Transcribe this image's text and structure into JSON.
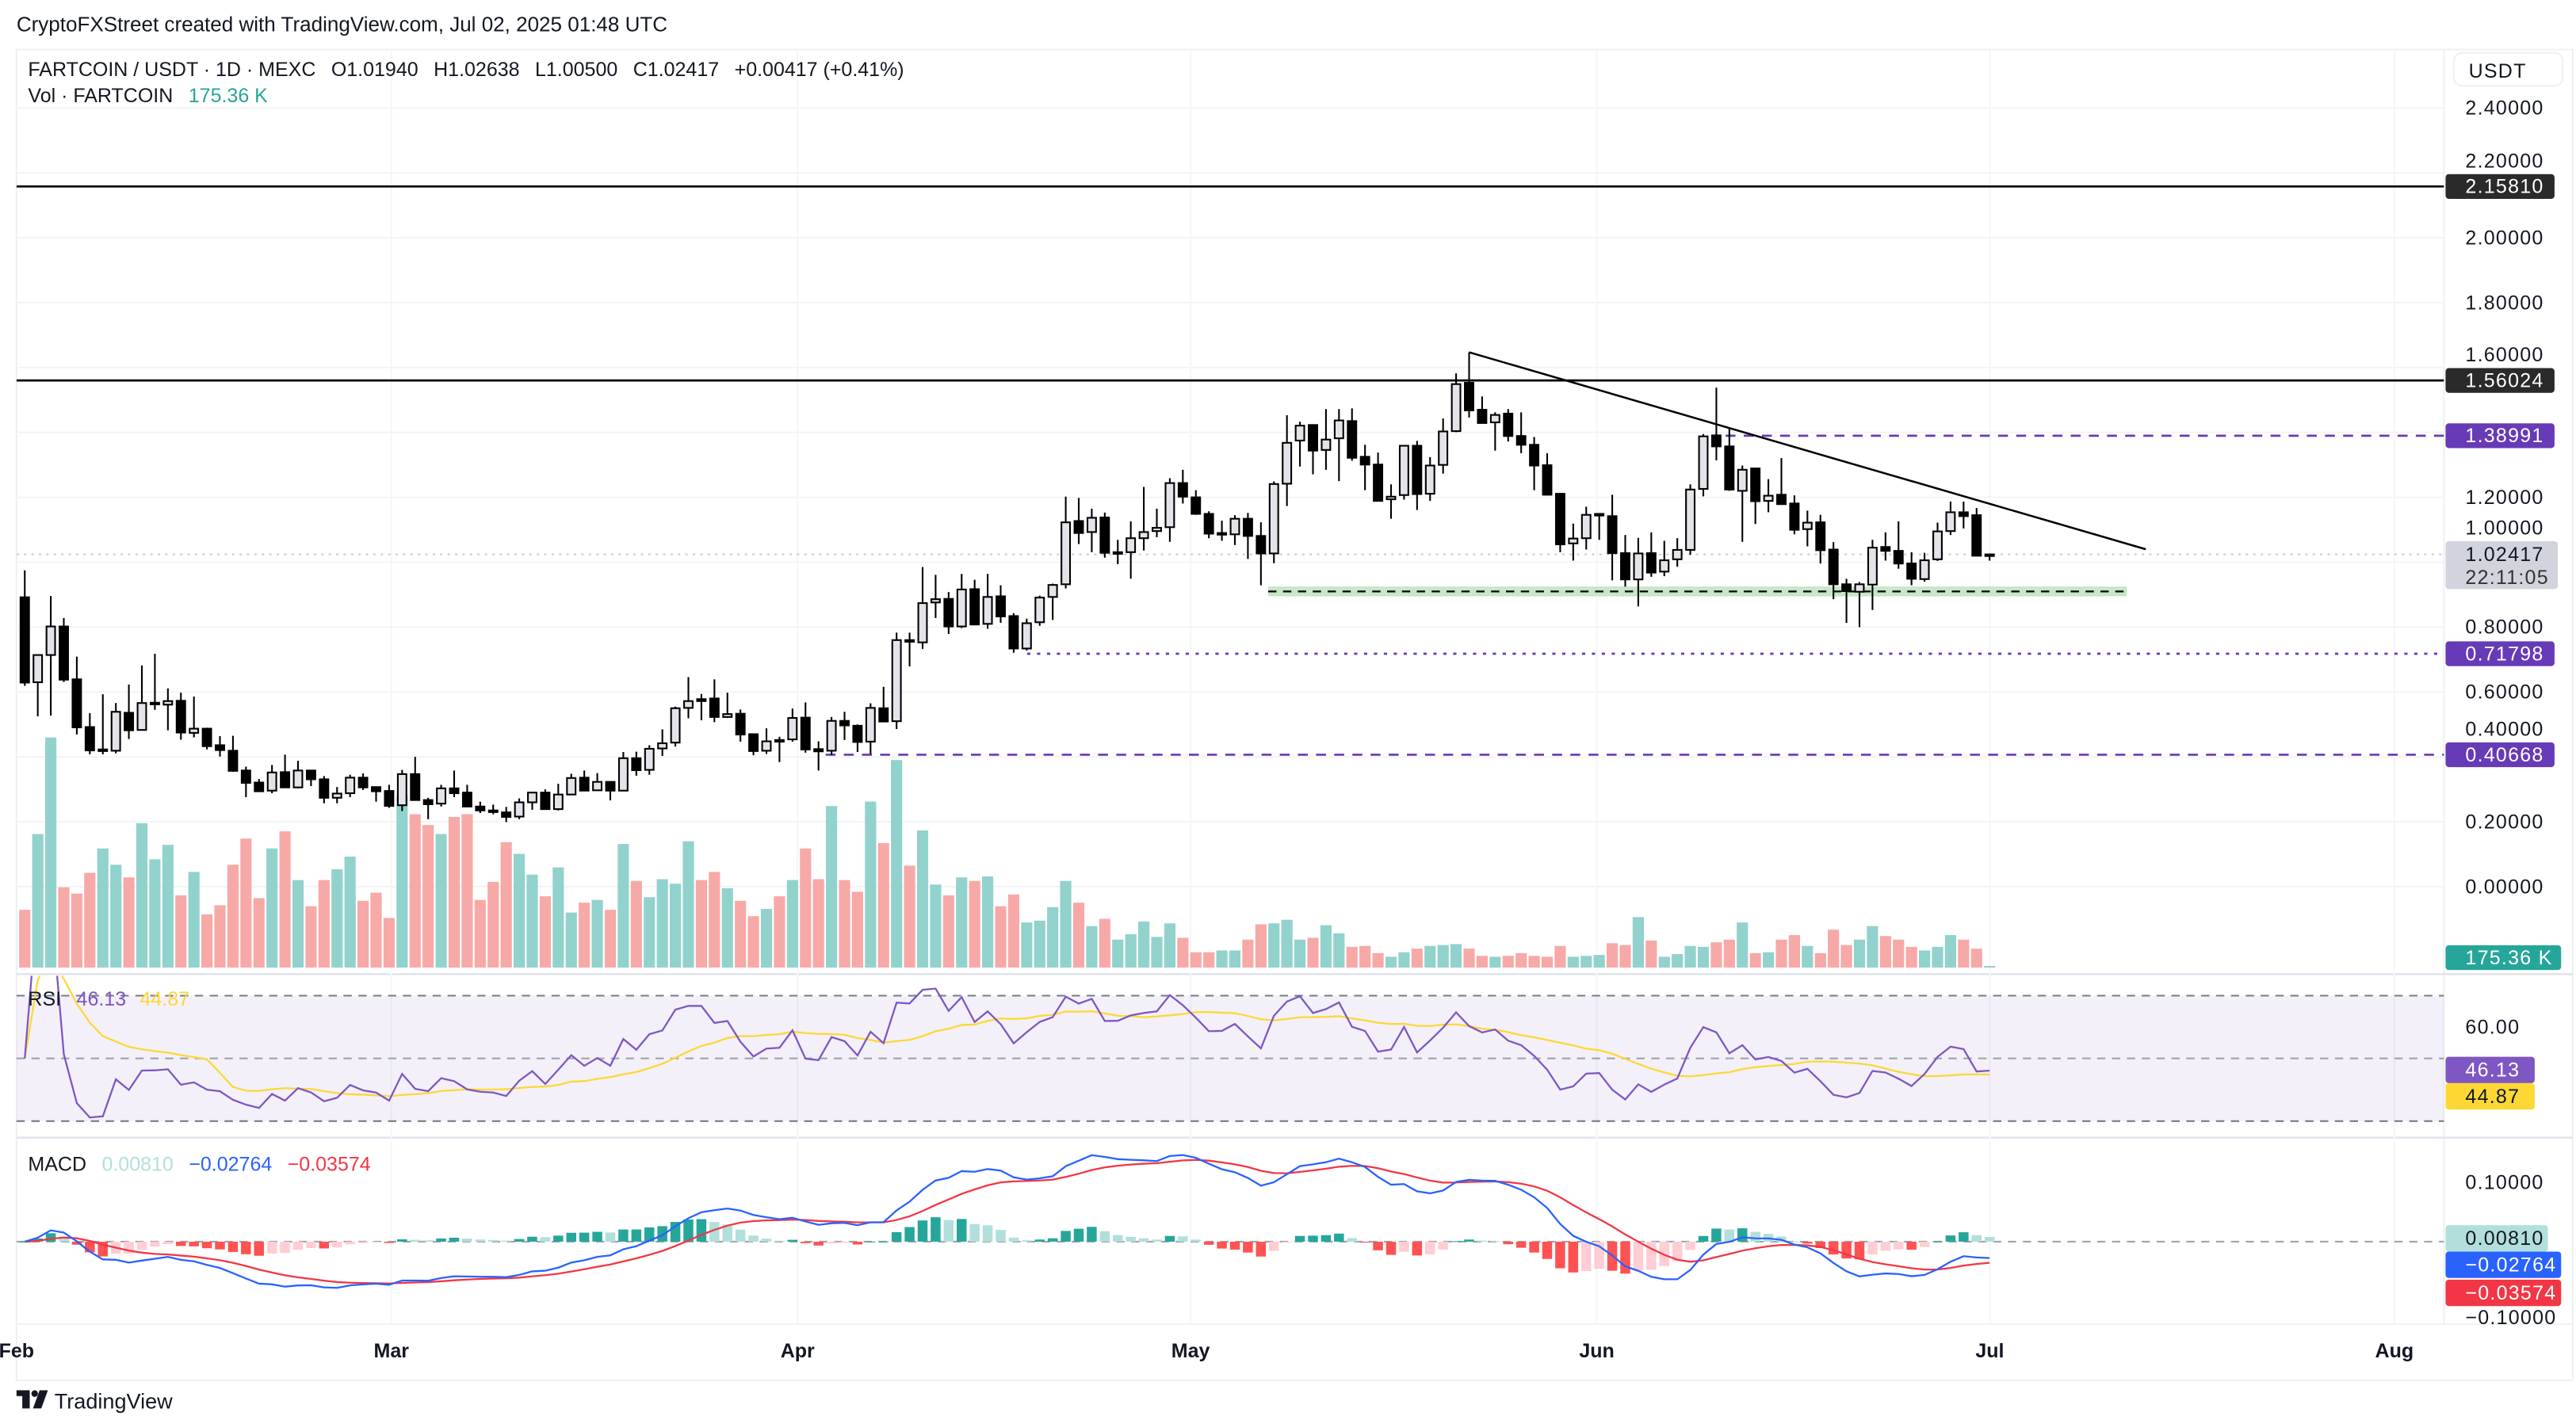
{
  "attribution": "CryptoFXStreet created with TradingView.com, Jul 02, 2025 01:48 UTC",
  "legend": {
    "symbol": "FARTCOIN / USDT · 1D · MEXC",
    "open": "O1.01940",
    "high": "H1.02638",
    "low": "L1.00500",
    "close": "C1.02417",
    "change": "+0.00417 (+0.41%)",
    "vol_label": "Vol · FARTCOIN",
    "vol_value": "175.36 K"
  },
  "currency_button": "USDT",
  "price_axis": [
    "2.40000",
    "2.20000",
    "2.00000",
    "1.80000",
    "1.60000",
    "1.20000",
    "1.00000",
    "0.80000",
    "0.60000",
    "0.40000",
    "0.20000",
    "0.00000"
  ],
  "price_badges": {
    "resistance_high": "2.15810",
    "resistance_mid": "1.56024",
    "level_upper": "1.38991",
    "last_price": "1.02417",
    "countdown": "22:11:05",
    "level_lower": "0.71798",
    "level_bottom": "0.40668",
    "volume": "175.36 K"
  },
  "rsi": {
    "label": "RSI",
    "value": "46.13",
    "ma_value": "44.87",
    "axis": [
      "60.00"
    ]
  },
  "macd": {
    "label": "MACD",
    "histogram": "0.00810",
    "macd": "−0.02764",
    "signal": "−0.03574",
    "axis": [
      "0.10000",
      "−0.10000"
    ]
  },
  "time_axis": [
    "Feb",
    "Mar",
    "Apr",
    "May",
    "Jun",
    "Jul",
    "Aug"
  ],
  "logo": "TradingView",
  "colors": {
    "bull_body": "#e3e4ea",
    "bear_body": "#000000",
    "vol_up": "#92d2cc",
    "vol_down": "#f7a9a7",
    "purple": "#673ab7",
    "rsi_line": "#7e57c2",
    "rsi_ma": "#fdd835",
    "macd_line": "#2962ff",
    "signal_line": "#f23645",
    "hist_up_strong": "#26a69a",
    "hist_up_weak": "#b2dfdb",
    "hist_down_strong": "#ff5252",
    "hist_down_weak": "#ffcdd2",
    "support_zone": "#c8e6c9"
  },
  "chart_data": {
    "type": "candlestick",
    "symbol": "FARTCOIN / USDT",
    "interval": "1D",
    "x_start": "2025-02-01",
    "x_end": "2025-07-02",
    "ylim": [
      0,
      2.4
    ],
    "ohlc": [
      [
        0.892,
        0.975,
        0.619,
        0.629
      ],
      [
        0.63,
        0.714,
        0.525,
        0.714
      ],
      [
        0.714,
        0.896,
        0.527,
        0.802
      ],
      [
        0.802,
        0.828,
        0.631,
        0.638
      ],
      [
        0.639,
        0.709,
        0.469,
        0.491
      ],
      [
        0.492,
        0.535,
        0.408,
        0.42
      ],
      [
        0.42,
        0.593,
        0.408,
        0.423
      ],
      [
        0.419,
        0.566,
        0.411,
        0.539
      ],
      [
        0.536,
        0.623,
        0.455,
        0.482
      ],
      [
        0.483,
        0.682,
        0.483,
        0.566
      ],
      [
        0.567,
        0.718,
        0.545,
        0.567
      ],
      [
        0.561,
        0.611,
        0.482,
        0.572
      ],
      [
        0.573,
        0.598,
        0.453,
        0.475
      ],
      [
        0.474,
        0.586,
        0.46,
        0.487
      ],
      [
        0.487,
        0.49,
        0.423,
        0.433
      ],
      [
        0.436,
        0.464,
        0.401,
        0.421
      ],
      [
        0.419,
        0.465,
        0.354,
        0.357
      ],
      [
        0.358,
        0.37,
        0.276,
        0.32
      ],
      [
        0.321,
        0.332,
        0.294,
        0.294
      ],
      [
        0.296,
        0.375,
        0.288,
        0.352
      ],
      [
        0.353,
        0.407,
        0.306,
        0.306
      ],
      [
        0.306,
        0.388,
        0.303,
        0.358
      ],
      [
        0.358,
        0.36,
        0.31,
        0.331
      ],
      [
        0.331,
        0.341,
        0.257,
        0.274
      ],
      [
        0.274,
        0.307,
        0.257,
        0.287
      ],
      [
        0.288,
        0.345,
        0.276,
        0.336
      ],
      [
        0.336,
        0.349,
        0.298,
        0.306
      ],
      [
        0.307,
        0.309,
        0.262,
        0.294
      ],
      [
        0.295,
        0.314,
        0.243,
        0.249
      ],
      [
        0.251,
        0.36,
        0.233,
        0.347
      ],
      [
        0.347,
        0.4,
        0.267,
        0.267
      ],
      [
        0.267,
        0.274,
        0.208,
        0.254
      ],
      [
        0.256,
        0.314,
        0.247,
        0.303
      ],
      [
        0.303,
        0.358,
        0.276,
        0.288
      ],
      [
        0.29,
        0.314,
        0.247,
        0.247
      ],
      [
        0.247,
        0.262,
        0.227,
        0.235
      ],
      [
        0.235,
        0.253,
        0.223,
        0.231
      ],
      [
        0.229,
        0.246,
        0.199,
        0.215
      ],
      [
        0.216,
        0.272,
        0.208,
        0.26
      ],
      [
        0.26,
        0.292,
        0.237,
        0.29
      ],
      [
        0.29,
        0.3,
        0.237,
        0.239
      ],
      [
        0.239,
        0.317,
        0.235,
        0.284
      ],
      [
        0.284,
        0.348,
        0.284,
        0.335
      ],
      [
        0.336,
        0.358,
        0.296,
        0.296
      ],
      [
        0.297,
        0.35,
        0.296,
        0.323
      ],
      [
        0.323,
        0.324,
        0.266,
        0.296
      ],
      [
        0.296,
        0.415,
        0.296,
        0.396
      ],
      [
        0.396,
        0.416,
        0.342,
        0.359
      ],
      [
        0.36,
        0.436,
        0.345,
        0.425
      ],
      [
        0.426,
        0.485,
        0.403,
        0.442
      ],
      [
        0.444,
        0.555,
        0.432,
        0.55
      ],
      [
        0.551,
        0.646,
        0.519,
        0.572
      ],
      [
        0.578,
        0.594,
        0.513,
        0.572
      ],
      [
        0.58,
        0.639,
        0.507,
        0.523
      ],
      [
        0.523,
        0.598,
        0.52,
        0.532
      ],
      [
        0.533,
        0.546,
        0.447,
        0.469
      ],
      [
        0.47,
        0.472,
        0.405,
        0.418
      ],
      [
        0.419,
        0.488,
        0.409,
        0.448
      ],
      [
        0.452,
        0.462,
        0.384,
        0.451
      ],
      [
        0.454,
        0.549,
        0.447,
        0.52
      ],
      [
        0.521,
        0.568,
        0.413,
        0.423
      ],
      [
        0.424,
        0.448,
        0.358,
        0.417
      ],
      [
        0.419,
        0.523,
        0.406,
        0.511
      ],
      [
        0.511,
        0.539,
        0.452,
        0.497
      ],
      [
        0.496,
        0.5,
        0.415,
        0.446
      ],
      [
        0.447,
        0.565,
        0.409,
        0.551
      ],
      [
        0.55,
        0.616,
        0.509,
        0.509
      ],
      [
        0.51,
        0.783,
        0.486,
        0.76
      ],
      [
        0.76,
        0.783,
        0.679,
        0.757
      ],
      [
        0.753,
        0.985,
        0.733,
        0.874
      ],
      [
        0.876,
        0.961,
        0.828,
        0.886
      ],
      [
        0.887,
        0.908,
        0.779,
        0.802
      ],
      [
        0.802,
        0.964,
        0.797,
        0.916
      ],
      [
        0.917,
        0.946,
        0.806,
        0.808
      ],
      [
        0.81,
        0.964,
        0.795,
        0.893
      ],
      [
        0.895,
        0.929,
        0.813,
        0.833
      ],
      [
        0.834,
        0.843,
        0.721,
        0.734
      ],
      [
        0.734,
        0.826,
        0.728,
        0.812
      ],
      [
        0.815,
        0.897,
        0.804,
        0.891
      ],
      [
        0.893,
        0.934,
        0.822,
        0.93
      ],
      [
        0.932,
        1.202,
        0.919,
        1.123
      ],
      [
        1.127,
        1.198,
        1.056,
        1.09
      ],
      [
        1.093,
        1.165,
        1.031,
        1.137
      ],
      [
        1.138,
        1.153,
        1.014,
        1.029
      ],
      [
        1.031,
        1.069,
        0.994,
        1.031
      ],
      [
        1.031,
        1.126,
        0.949,
        1.074
      ],
      [
        1.074,
        1.232,
        1.036,
        1.093
      ],
      [
        1.096,
        1.165,
        1.077,
        1.106
      ],
      [
        1.108,
        1.259,
        1.063,
        1.244
      ],
      [
        1.244,
        1.285,
        1.181,
        1.202
      ],
      [
        1.2,
        1.222,
        1.146,
        1.149
      ],
      [
        1.149,
        1.157,
        1.074,
        1.088
      ],
      [
        1.09,
        1.128,
        1.066,
        1.09
      ],
      [
        1.086,
        1.145,
        1.053,
        1.134
      ],
      [
        1.134,
        1.152,
        1.01,
        1.081
      ],
      [
        1.081,
        1.123,
        0.929,
        1.027
      ],
      [
        1.027,
        1.249,
        0.997,
        1.241
      ],
      [
        1.242,
        1.453,
        1.173,
        1.368
      ],
      [
        1.375,
        1.433,
        1.295,
        1.421
      ],
      [
        1.423,
        1.423,
        1.271,
        1.344
      ],
      [
        1.346,
        1.472,
        1.285,
        1.378
      ],
      [
        1.382,
        1.472,
        1.25,
        1.437
      ],
      [
        1.435,
        1.474,
        1.313,
        1.322
      ],
      [
        1.325,
        1.362,
        1.222,
        1.301
      ],
      [
        1.301,
        1.338,
        1.188,
        1.189
      ],
      [
        1.194,
        1.24,
        1.134,
        1.202
      ],
      [
        1.207,
        1.359,
        1.193,
        1.359
      ],
      [
        1.359,
        1.374,
        1.161,
        1.21
      ],
      [
        1.211,
        1.324,
        1.189,
        1.298
      ],
      [
        1.3,
        1.443,
        1.273,
        1.403
      ],
      [
        1.404,
        1.582,
        1.401,
        1.549
      ],
      [
        1.553,
        1.647,
        1.446,
        1.468
      ],
      [
        1.47,
        1.511,
        1.428,
        1.429
      ],
      [
        1.431,
        1.462,
        1.344,
        1.454
      ],
      [
        1.458,
        1.472,
        1.372,
        1.389
      ],
      [
        1.389,
        1.462,
        1.336,
        1.362
      ],
      [
        1.362,
        1.386,
        1.222,
        1.298
      ],
      [
        1.299,
        1.336,
        1.206,
        1.208
      ],
      [
        1.211,
        1.214,
        1.031,
        1.055
      ],
      [
        1.058,
        1.119,
        1.005,
        1.073
      ],
      [
        1.074,
        1.171,
        1.039,
        1.146
      ],
      [
        1.149,
        1.151,
        1.069,
        1.149
      ],
      [
        1.142,
        1.208,
        0.944,
        1.028
      ],
      [
        1.028,
        1.084,
        0.925,
        0.947
      ],
      [
        0.947,
        1.075,
        0.864,
        1.027
      ],
      [
        1.028,
        1.092,
        0.955,
        0.968
      ],
      [
        0.971,
        1.066,
        0.957,
        1.006
      ],
      [
        1.009,
        1.074,
        0.986,
        1.038
      ],
      [
        1.038,
        1.24,
        1.023,
        1.224
      ],
      [
        1.226,
        1.395,
        1.203,
        1.388
      ],
      [
        1.391,
        1.538,
        1.314,
        1.357
      ],
      [
        1.357,
        1.412,
        1.22,
        1.224
      ],
      [
        1.22,
        1.298,
        1.063,
        1.285
      ],
      [
        1.289,
        1.291,
        1.118,
        1.188
      ],
      [
        1.189,
        1.256,
        1.154,
        1.205
      ],
      [
        1.208,
        1.321,
        1.177,
        1.179
      ],
      [
        1.181,
        1.206,
        1.086,
        1.1
      ],
      [
        1.102,
        1.159,
        1.049,
        1.122
      ],
      [
        1.123,
        1.146,
        0.996,
        1.037
      ],
      [
        1.039,
        1.062,
        0.886,
        0.932
      ],
      [
        0.932,
        0.949,
        0.813,
        0.911
      ],
      [
        0.909,
        0.939,
        0.8,
        0.932
      ],
      [
        0.931,
        1.069,
        0.853,
        1.045
      ],
      [
        1.047,
        1.092,
        1.005,
        1.035
      ],
      [
        1.035,
        1.126,
        0.98,
        0.996
      ],
      [
        0.996,
        1.031,
        0.929,
        0.949
      ],
      [
        0.948,
        1.029,
        0.94,
        1.006
      ],
      [
        1.009,
        1.122,
        1.004,
        1.095
      ],
      [
        1.096,
        1.187,
        1.084,
        1.154
      ],
      [
        1.154,
        1.187,
        1.104,
        1.142
      ],
      [
        1.145,
        1.167,
        1.02,
        1.02
      ],
      [
        1.0194,
        1.02638,
        1.005,
        1.02417
      ]
    ],
    "volume_k": [
      6400,
      14800,
      25500,
      8900,
      8200,
      10500,
      13200,
      11400,
      10000,
      16000,
      12000,
      13600,
      8000,
      10600,
      5900,
      6900,
      11400,
      14300,
      7700,
      13200,
      15100,
      9700,
      6800,
      9700,
      10900,
      12300,
      7400,
      8300,
      5500,
      19100,
      17000,
      15800,
      14800,
      16700,
      17000,
      7500,
      9500,
      13900,
      12600,
      10300,
      7900,
      11100,
      6100,
      7200,
      7500,
      6400,
      13700,
      9600,
      7800,
      9800,
      9300,
      14000,
      9700,
      10600,
      8800,
      7400,
      5700,
      6500,
      7900,
      9700,
      13200,
      9800,
      17900,
      9700,
      8400,
      18400,
      13800,
      23000,
      11300,
      15200,
      9200,
      8000,
      10000,
      9600,
      10100,
      6800,
      8100,
      5000,
      5200,
      6700,
      9600,
      7200,
      4600,
      5400,
      3100,
      3700,
      5100,
      3400,
      4900,
      3300,
      1700,
      1700,
      1900,
      1900,
      3100,
      4800,
      4900,
      5300,
      3100,
      3300,
      4700,
      3800,
      2300,
      2400,
      1600,
      1200,
      1700,
      2100,
      2400,
      2500,
      2600,
      2100,
      1300,
      1200,
      1300,
      1600,
      1300,
      1200,
      2400,
      1200,
      1300,
      1400,
      2700,
      2500,
      5600,
      3000,
      1200,
      1500,
      2400,
      2300,
      2800,
      3100,
      5000,
      1600,
      1700,
      3100,
      3600,
      2400,
      1600,
      4200,
      2500,
      3100,
      4600,
      3500,
      3100,
      2300,
      1900,
      2300,
      3600,
      3100,
      2100,
      175.36
    ],
    "horizontal_levels": [
      {
        "value": 2.1581,
        "style": "solid",
        "color": "#000000"
      },
      {
        "value": 1.56024,
        "style": "solid",
        "color": "#000000"
      },
      {
        "value": 1.38991,
        "style": "dashed",
        "color": "#673ab7"
      },
      {
        "value": 0.71798,
        "style": "dotted",
        "color": "#673ab7"
      },
      {
        "value": 0.40668,
        "style": "dashed",
        "color": "#673ab7"
      }
    ],
    "support_zone": {
      "value": 0.91,
      "style": "dashed",
      "color": "#c8e6c9"
    },
    "trendline": {
      "from": {
        "date": "2025-05-23",
        "price": 1.647
      },
      "to": {
        "date": "2025-07-14",
        "price": 1.04
      }
    },
    "indicators": {
      "rsi": {
        "period": 14,
        "levels": [
          70,
          50,
          30
        ],
        "last": 46.13,
        "ma_last": 44.87
      },
      "macd": {
        "fast": 12,
        "slow": 26,
        "signal": 9,
        "histogram_last": 0.0081,
        "macd_last": -0.02764,
        "signal_last": -0.03574
      }
    },
    "grid": true
  }
}
